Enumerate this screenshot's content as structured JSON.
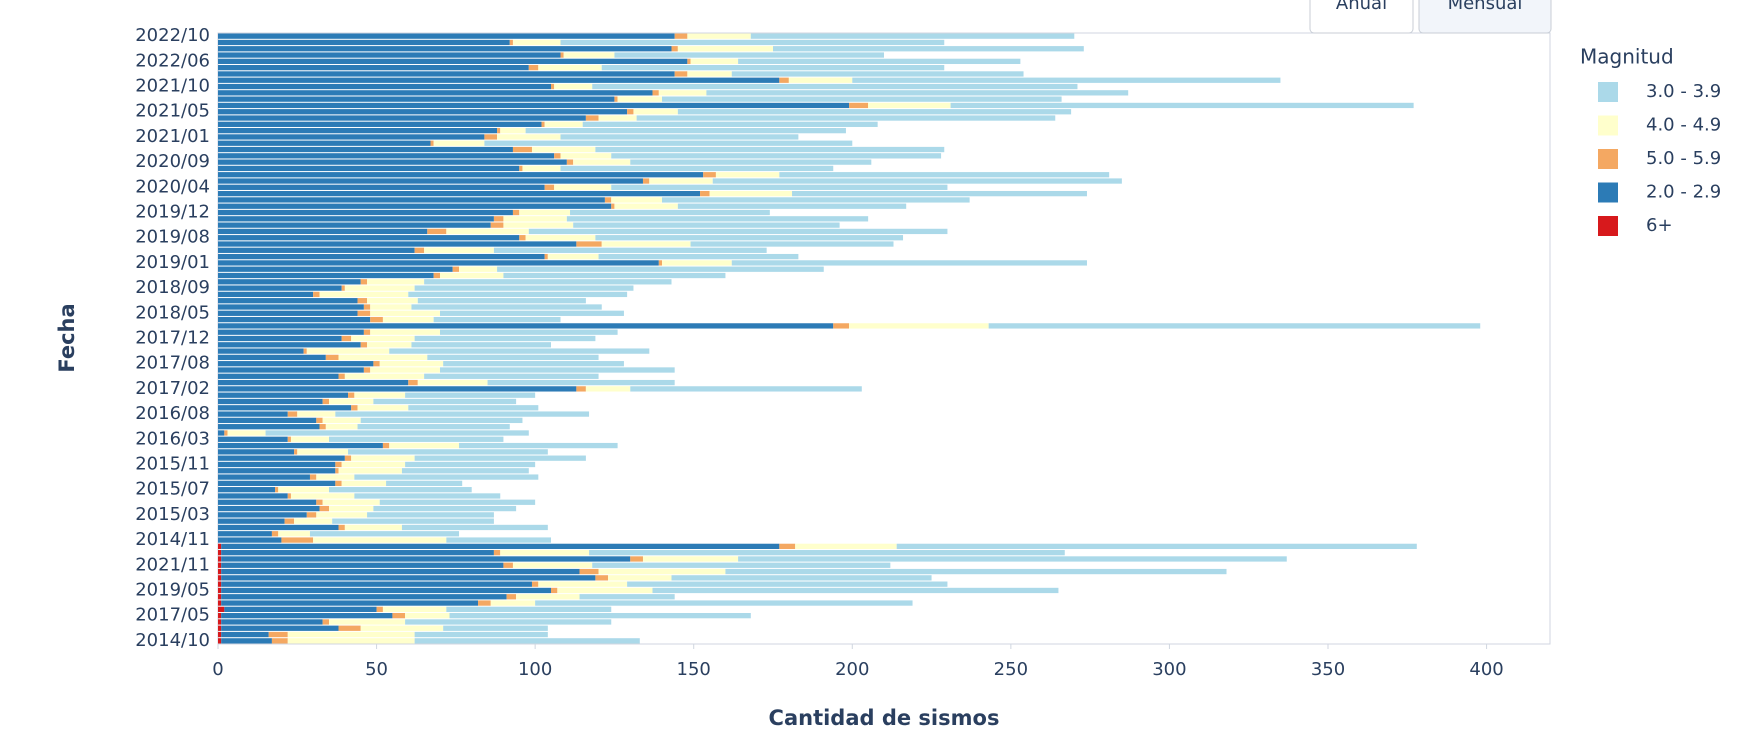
{
  "chart_data": {
    "type": "bar",
    "orientation": "horizontal",
    "stacked": true,
    "xlabel": "Cantidad de sismos",
    "ylabel": "Fecha",
    "legend_title": "Magnitud",
    "legend_position": "right",
    "buttons": [
      "Anual",
      "Mensual"
    ],
    "active_button": 1,
    "grid": false,
    "xlim": [
      0,
      420
    ],
    "xticks": [
      0,
      50,
      100,
      150,
      200,
      250,
      300,
      350,
      400
    ],
    "categories": [
      "2014/10",
      null,
      null,
      null,
      "2017/05",
      null,
      null,
      null,
      "2019/05",
      null,
      null,
      null,
      "2021/11",
      null,
      null,
      null,
      "2014/11",
      null,
      null,
      null,
      "2015/03",
      null,
      null,
      null,
      "2015/07",
      null,
      null,
      null,
      "2015/11",
      null,
      null,
      null,
      "2016/03",
      null,
      null,
      null,
      "2016/08",
      null,
      null,
      null,
      "2017/02",
      null,
      null,
      null,
      "2017/08",
      null,
      null,
      null,
      "2017/12",
      null,
      null,
      null,
      "2018/05",
      null,
      null,
      null,
      "2018/09",
      null,
      null,
      null,
      "2019/01",
      null,
      null,
      null,
      "2019/08",
      null,
      null,
      null,
      "2019/12",
      null,
      null,
      null,
      "2020/04",
      null,
      null,
      null,
      "2020/09",
      null,
      null,
      null,
      "2021/01",
      null,
      null,
      null,
      "2021/05",
      null,
      null,
      null,
      "2021/10",
      null,
      null,
      null,
      "2022/06",
      null,
      null,
      null,
      "2022/10"
    ],
    "series": [
      {
        "name": "6+",
        "color": "#d7191c",
        "values": [
          1,
          1,
          1,
          1,
          1,
          2,
          1,
          1,
          1,
          1,
          1,
          1,
          1,
          1,
          1,
          1,
          0,
          0,
          0,
          0,
          0,
          0,
          0,
          0,
          0,
          0,
          0,
          0,
          0,
          0,
          0,
          0,
          0,
          0,
          0,
          0,
          0,
          0,
          0,
          0,
          0,
          0,
          0,
          0,
          0,
          0,
          0,
          0,
          0,
          0,
          0,
          0,
          0,
          0,
          0,
          0,
          0,
          0,
          0,
          0,
          0,
          0,
          0,
          0,
          0,
          0,
          0,
          0,
          0,
          0,
          0,
          0,
          0,
          0,
          0,
          0,
          0,
          0,
          0,
          0,
          0,
          0,
          0,
          0,
          0,
          0,
          0,
          0,
          0,
          0,
          0,
          0,
          0,
          0,
          0,
          0,
          0
        ]
      },
      {
        "name": "2.0 - 2.9",
        "color": "#2c7bb6",
        "values": [
          16,
          15,
          37,
          32,
          54,
          48,
          81,
          90,
          104,
          98,
          118,
          113,
          89,
          129,
          86,
          176,
          20,
          17,
          38,
          21,
          28,
          32,
          31,
          22,
          18,
          37,
          29,
          37,
          37,
          40,
          24,
          52,
          22,
          2,
          32,
          31,
          22,
          42,
          33,
          41,
          113,
          60,
          38,
          46,
          49,
          34,
          27,
          45,
          39,
          46,
          194,
          48,
          44,
          46,
          44,
          30,
          39,
          45,
          68,
          74,
          139,
          103,
          62,
          113,
          95,
          66,
          86,
          87,
          93,
          124,
          122,
          152,
          103,
          134,
          153,
          95,
          110,
          106,
          93,
          67,
          84,
          88,
          102,
          116,
          129,
          199,
          125,
          137,
          105,
          177,
          144,
          98,
          148,
          108,
          143,
          92,
          144
        ]
      },
      {
        "name": "5.0 - 5.9",
        "color": "#f4a862",
        "values": [
          5,
          6,
          7,
          2,
          4,
          2,
          4,
          3,
          2,
          2,
          4,
          6,
          3,
          4,
          2,
          5,
          10,
          2,
          2,
          3,
          3,
          3,
          2,
          1,
          1,
          2,
          2,
          1,
          2,
          2,
          1,
          2,
          1,
          1,
          2,
          2,
          3,
          2,
          2,
          2,
          3,
          3,
          2,
          2,
          2,
          4,
          1,
          2,
          3,
          2,
          5,
          4,
          4,
          2,
          3,
          2,
          1,
          2,
          2,
          2,
          1,
          1,
          3,
          8,
          2,
          6,
          4,
          3,
          2,
          1,
          2,
          3,
          3,
          2,
          4,
          1,
          2,
          2,
          6,
          1,
          4,
          1,
          1,
          4,
          2,
          6,
          1,
          2,
          1,
          3,
          4,
          3,
          1,
          1,
          2,
          1,
          4
        ]
      },
      {
        "name": "4.0 - 4.9",
        "color": "#ffffcc",
        "values": [
          40,
          40,
          26,
          24,
          14,
          20,
          14,
          20,
          30,
          28,
          20,
          40,
          25,
          30,
          28,
          32,
          42,
          10,
          18,
          12,
          16,
          14,
          18,
          20,
          16,
          14,
          12,
          20,
          20,
          20,
          16,
          22,
          12,
          12,
          10,
          12,
          12,
          16,
          14,
          16,
          14,
          22,
          25,
          22,
          20,
          28,
          26,
          14,
          20,
          22,
          44,
          16,
          22,
          13,
          16,
          28,
          22,
          18,
          20,
          12,
          22,
          16,
          22,
          28,
          22,
          26,
          22,
          20,
          16,
          20,
          16,
          26,
          18,
          20,
          20,
          12,
          18,
          16,
          20,
          16,
          20,
          8,
          12,
          12,
          14,
          26,
          14,
          15,
          12,
          20,
          14,
          20,
          15,
          16,
          30,
          15,
          20
        ]
      },
      {
        "name": "3.0 - 3.9",
        "color": "#abd9e9",
        "values": [
          71,
          42,
          33,
          65,
          95,
          52,
          119,
          30,
          128,
          101,
          82,
          158,
          94,
          173,
          150,
          164,
          33,
          47,
          46,
          51,
          40,
          45,
          49,
          46,
          45,
          24,
          58,
          40,
          41,
          54,
          63,
          50,
          55,
          83,
          48,
          51,
          80,
          41,
          45,
          41,
          73,
          59,
          55,
          74,
          57,
          54,
          82,
          44,
          57,
          56,
          155,
          40,
          58,
          60,
          53,
          69,
          69,
          78,
          70,
          103,
          112,
          63,
          86,
          64,
          97,
          132,
          84,
          95,
          63,
          72,
          97,
          93,
          106,
          129,
          104,
          86,
          76,
          104,
          110,
          116,
          75,
          101,
          93,
          132,
          124,
          146,
          126,
          133,
          153,
          135,
          92,
          108,
          89,
          85,
          98,
          121,
          102
        ]
      }
    ]
  }
}
